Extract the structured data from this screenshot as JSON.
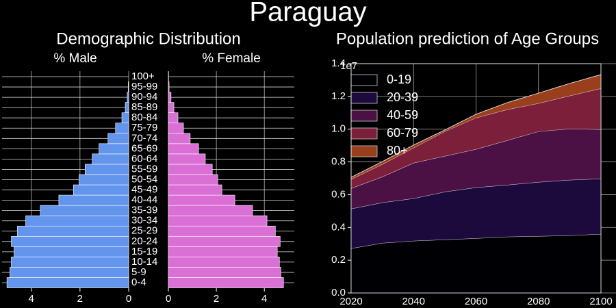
{
  "title": "Paraguay",
  "subtitle": "Demographic Distribution",
  "chart_data": [
    {
      "type": "hbar",
      "title": "% Male",
      "color": "#6495ed",
      "categories": [
        "0-4",
        "5-9",
        "10-14",
        "15-19",
        "20-24",
        "25-29",
        "30-34",
        "35-39",
        "40-44",
        "45-49",
        "50-54",
        "55-59",
        "60-64",
        "65-69",
        "70-74",
        "75-79",
        "80-84",
        "85-89",
        "90-94",
        "95-99",
        "100+"
      ],
      "values": [
        5.0,
        4.88,
        4.82,
        4.71,
        4.82,
        4.57,
        4.23,
        3.63,
        2.87,
        2.27,
        2.04,
        1.79,
        1.5,
        1.22,
        0.85,
        0.54,
        0.28,
        0.14,
        0.06,
        0.02,
        0.0
      ],
      "xlim": [
        5.2,
        0
      ],
      "xticks": [
        4,
        2,
        0
      ],
      "grid": true
    },
    {
      "type": "hbar",
      "title": "% Female",
      "color": "#da70d6",
      "categories": [
        "0-4",
        "5-9",
        "10-14",
        "15-19",
        "20-24",
        "25-29",
        "30-34",
        "35-39",
        "40-44",
        "45-49",
        "50-54",
        "55-59",
        "60-64",
        "65-69",
        "70-74",
        "75-79",
        "80-84",
        "85-89",
        "90-94",
        "95-99",
        "100+"
      ],
      "values": [
        4.8,
        4.69,
        4.63,
        4.54,
        4.66,
        4.46,
        4.11,
        3.51,
        2.77,
        2.23,
        2.06,
        1.83,
        1.54,
        1.26,
        0.91,
        0.63,
        0.4,
        0.23,
        0.11,
        0.03,
        0.01
      ],
      "xlim": [
        0,
        5.25
      ],
      "xticks": [
        0,
        2,
        4
      ],
      "grid": true
    },
    {
      "type": "stacked_area",
      "title": "Population prediction of Age Groups",
      "y_offset_label": "1e7",
      "x": [
        2020,
        2030,
        2040,
        2050,
        2060,
        2070,
        2080,
        2090,
        2100
      ],
      "series": [
        {
          "name": "0-19",
          "color": "#000004",
          "values": [
            2720000,
            3050000,
            3180000,
            3260000,
            3340000,
            3430000,
            3470000,
            3510000,
            3600000
          ]
        },
        {
          "name": "20-39",
          "color": "#1d0a3c",
          "values": [
            2420000,
            2470000,
            2590000,
            2920000,
            3100000,
            3170000,
            3300000,
            3390000,
            3380000
          ]
        },
        {
          "name": "40-59",
          "color": "#4b1145",
          "values": [
            1250000,
            1580000,
            2170000,
            2180000,
            2340000,
            2720000,
            3090000,
            3130000,
            3010000
          ]
        },
        {
          "name": "60-79",
          "color": "#7b1f3a",
          "values": [
            550000,
            760000,
            920000,
            1500000,
            1920000,
            1880000,
            1720000,
            2010000,
            2500000
          ]
        },
        {
          "name": "80+",
          "color": "#9a3f1c",
          "values": [
            120000,
            160000,
            170000,
            90000,
            210000,
            420000,
            620000,
            750000,
            840000
          ]
        }
      ],
      "xlim": [
        2020,
        2100
      ],
      "xticks": [
        2020,
        2040,
        2060,
        2080,
        2100
      ],
      "ylim": [
        0,
        14000000
      ],
      "yticks": [
        {
          "value": 0,
          "label": "0.0"
        },
        {
          "value": 2000000,
          "label": "0.2"
        },
        {
          "value": 4000000,
          "label": "0.4"
        },
        {
          "value": 6000000,
          "label": "0.6"
        },
        {
          "value": 8000000,
          "label": "0.8"
        },
        {
          "value": 10000000,
          "label": "1.0"
        },
        {
          "value": 12000000,
          "label": "1.2"
        },
        {
          "value": 14000000,
          "label": "1.4"
        }
      ],
      "grid": true,
      "legend": "upper-left"
    }
  ]
}
